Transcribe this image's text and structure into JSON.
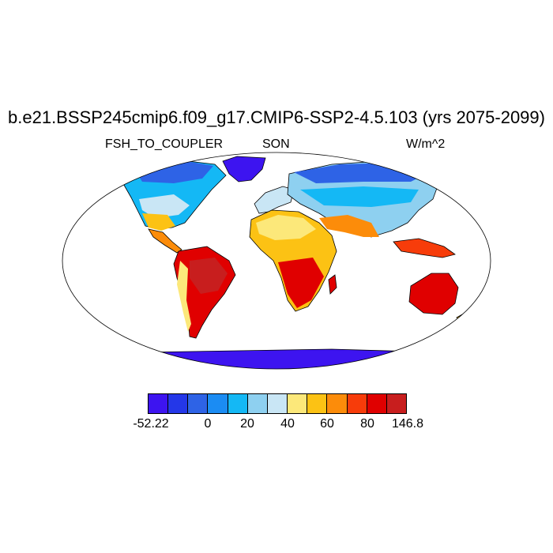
{
  "title": "b.e21.BSSP245cmip6.f09_g17.CMIP6-SSP2-4.5.103 (yrs 2075-2099)",
  "variable": "FSH_TO_COUPLER",
  "season": "SON",
  "units": "W/m^2",
  "colorbar": {
    "colors": [
      "#3d14f0",
      "#2437e8",
      "#2e63e6",
      "#1b8cf3",
      "#14b8f5",
      "#8ed0f0",
      "#c9e6f5",
      "#fce87a",
      "#fcc214",
      "#fc8c0a",
      "#f73c0a",
      "#e00000",
      "#c81e1e"
    ],
    "labels": [
      "-52.22",
      "0",
      "20",
      "40",
      "60",
      "80",
      "146.8"
    ]
  },
  "palette": {
    "ocean": "#ffffff",
    "coast": "#000000"
  }
}
